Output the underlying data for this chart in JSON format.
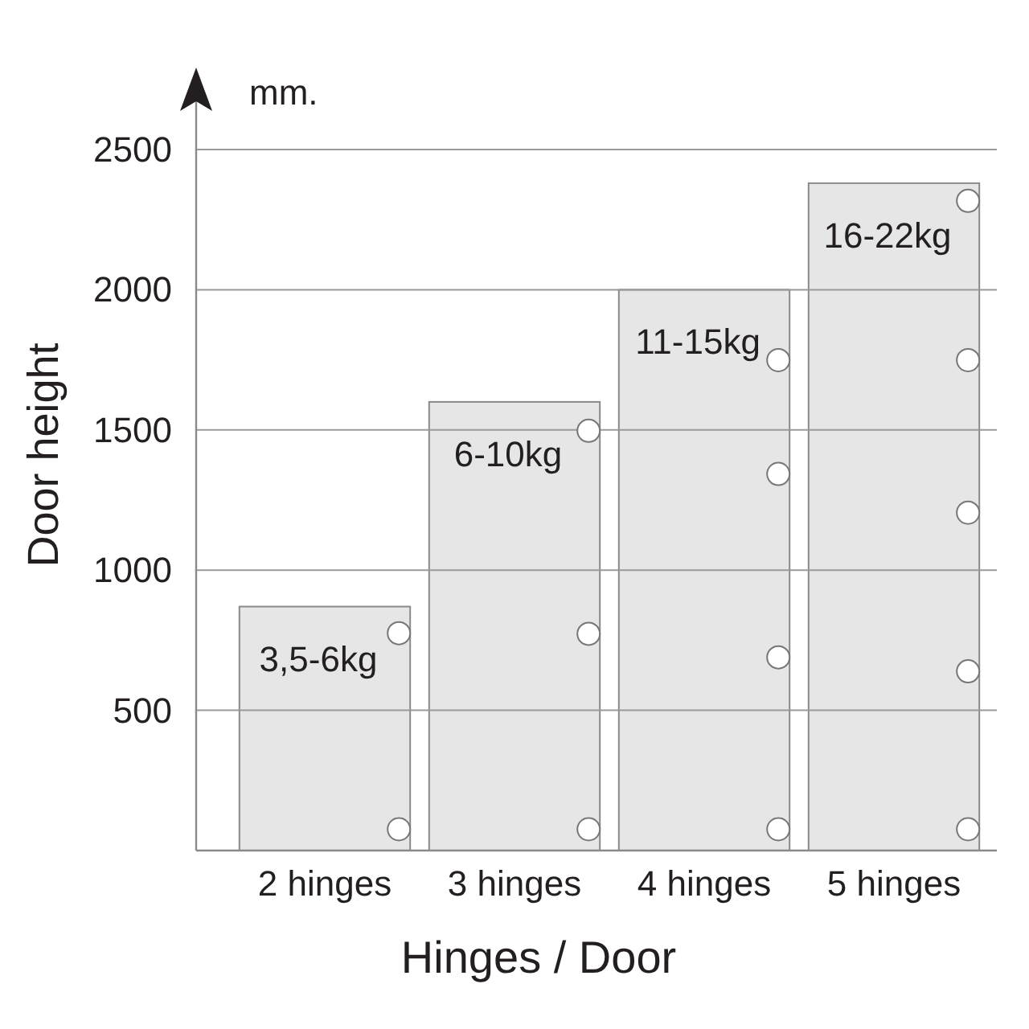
{
  "chart_data": {
    "type": "bar",
    "categories": [
      "2 hinges",
      "3 hinges",
      "4 hinges",
      "5 hinges"
    ],
    "values": [
      870,
      1600,
      2000,
      2380
    ],
    "color": "#e6e6e7",
    "xlabel": "Hinges / Door",
    "ylabel": "Door height",
    "annotations": [
      "3,5-6kg",
      "6-10kg",
      "11-15kg",
      "16-22kg",
      "mm."
    ],
    "ylim": [
      0,
      2500
    ],
    "yticks": [
      500,
      1000,
      1500,
      2000,
      2500
    ],
    "grid": "y"
  }
}
